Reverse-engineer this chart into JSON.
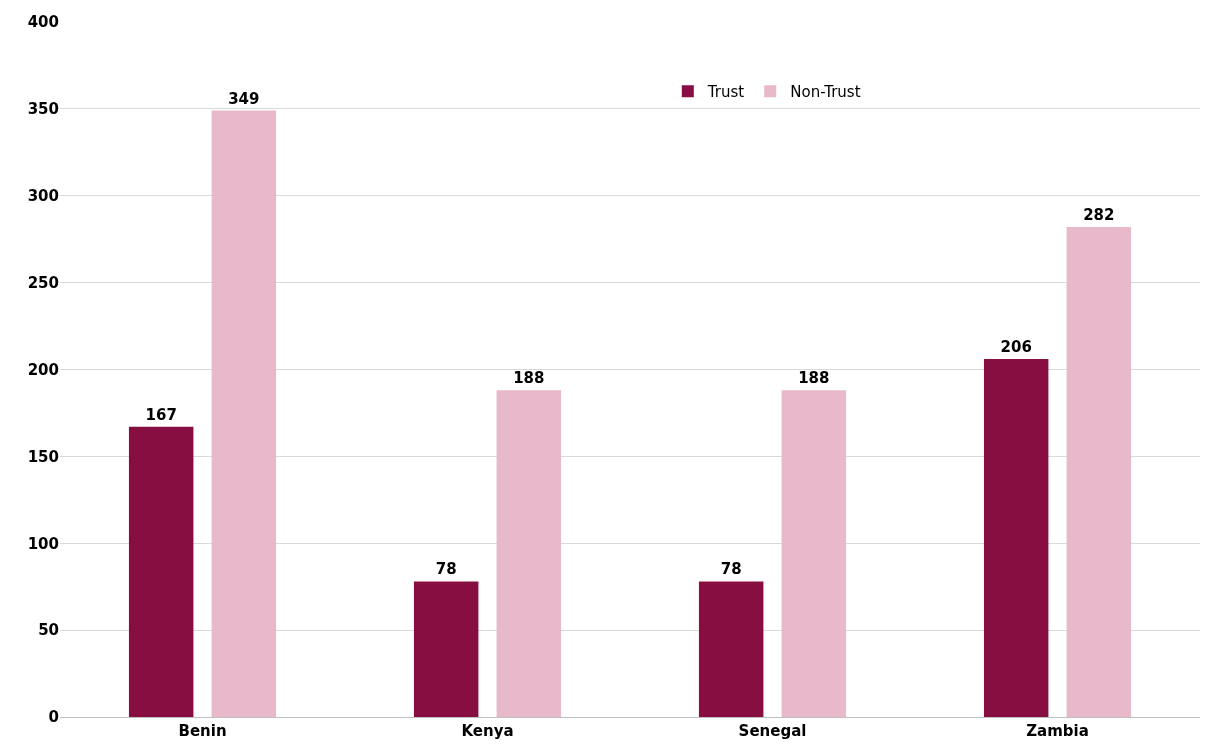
{
  "chart_data": {
    "type": "bar",
    "categories": [
      "Benin",
      "Kenya",
      "Senegal",
      "Zambia"
    ],
    "series": [
      {
        "name": "Trust",
        "color": "#870e40",
        "values": [
          167,
          78,
          78,
          206
        ]
      },
      {
        "name": "Non-Trust",
        "color": "#e8b9ca",
        "values": [
          349,
          188,
          188,
          282
        ]
      }
    ],
    "ylim": [
      0,
      400
    ],
    "yticks": [
      0,
      50,
      100,
      150,
      200,
      250,
      300,
      350,
      400
    ],
    "grid": "y",
    "legend": "top",
    "data_labels": true
  }
}
